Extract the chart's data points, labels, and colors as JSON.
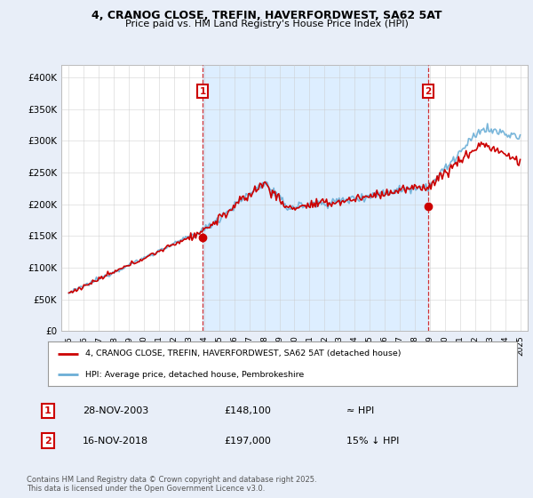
{
  "title": "4, CRANOG CLOSE, TREFIN, HAVERFORDWEST, SA62 5AT",
  "subtitle": "Price paid vs. HM Land Registry's House Price Index (HPI)",
  "ylim": [
    0,
    420000
  ],
  "yticks": [
    0,
    50000,
    100000,
    150000,
    200000,
    250000,
    300000,
    350000,
    400000
  ],
  "ytick_labels": [
    "£0",
    "£50K",
    "£100K",
    "£150K",
    "£200K",
    "£250K",
    "£300K",
    "£350K",
    "£400K"
  ],
  "hpi_color": "#6baed6",
  "price_color": "#cc0000",
  "shade_color": "#ddeeff",
  "sale1_year_f": 2003.9,
  "sale2_year_f": 2018.88,
  "sale1_price": 148100,
  "sale2_price": 197000,
  "sale1_date": "28-NOV-2003",
  "sale1_price_str": "£148,100",
  "sale1_hpi": "≈ HPI",
  "sale2_date": "16-NOV-2018",
  "sale2_price_str": "£197,000",
  "sale2_hpi": "15% ↓ HPI",
  "legend_label1": "4, CRANOG CLOSE, TREFIN, HAVERFORDWEST, SA62 5AT (detached house)",
  "legend_label2": "HPI: Average price, detached house, Pembrokeshire",
  "footnote": "Contains HM Land Registry data © Crown copyright and database right 2025.\nThis data is licensed under the Open Government Licence v3.0.",
  "background_color": "#e8eef8",
  "plot_background": "#ffffff",
  "grid_color": "#cccccc"
}
